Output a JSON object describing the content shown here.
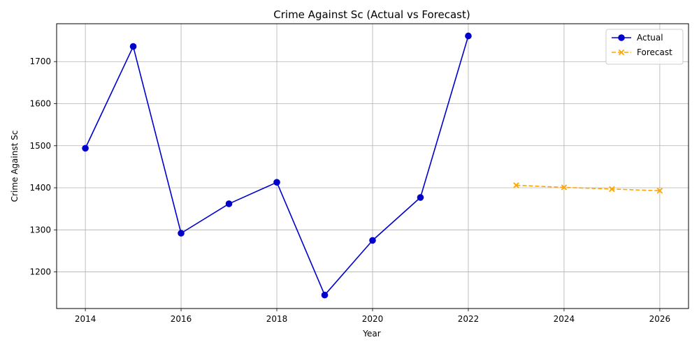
{
  "chart_data": {
    "type": "line",
    "title": "Crime Against Sc (Actual vs Forecast)",
    "xlabel": "Year",
    "ylabel": "Crime Against Sc",
    "xlim": [
      2013.4,
      2026.6
    ],
    "ylim": [
      1113,
      1790
    ],
    "x_ticks": [
      2014,
      2016,
      2018,
      2020,
      2022,
      2024,
      2026
    ],
    "y_ticks": [
      1200,
      1300,
      1400,
      1500,
      1600,
      1700
    ],
    "grid": true,
    "legend_position": "top-right",
    "series": [
      {
        "name": "Actual",
        "color": "#0000cd",
        "line_style": "solid",
        "marker": "circle",
        "x": [
          2014,
          2015,
          2016,
          2017,
          2018,
          2019,
          2020,
          2021,
          2022
        ],
        "y": [
          1494,
          1736,
          1292,
          1362,
          1413,
          1145,
          1275,
          1377,
          1761
        ]
      },
      {
        "name": "Forecast",
        "color": "#ffa500",
        "line_style": "dashed",
        "marker": "x",
        "x": [
          2023,
          2024,
          2025,
          2026
        ],
        "y": [
          1406,
          1401,
          1397,
          1393
        ]
      }
    ]
  }
}
